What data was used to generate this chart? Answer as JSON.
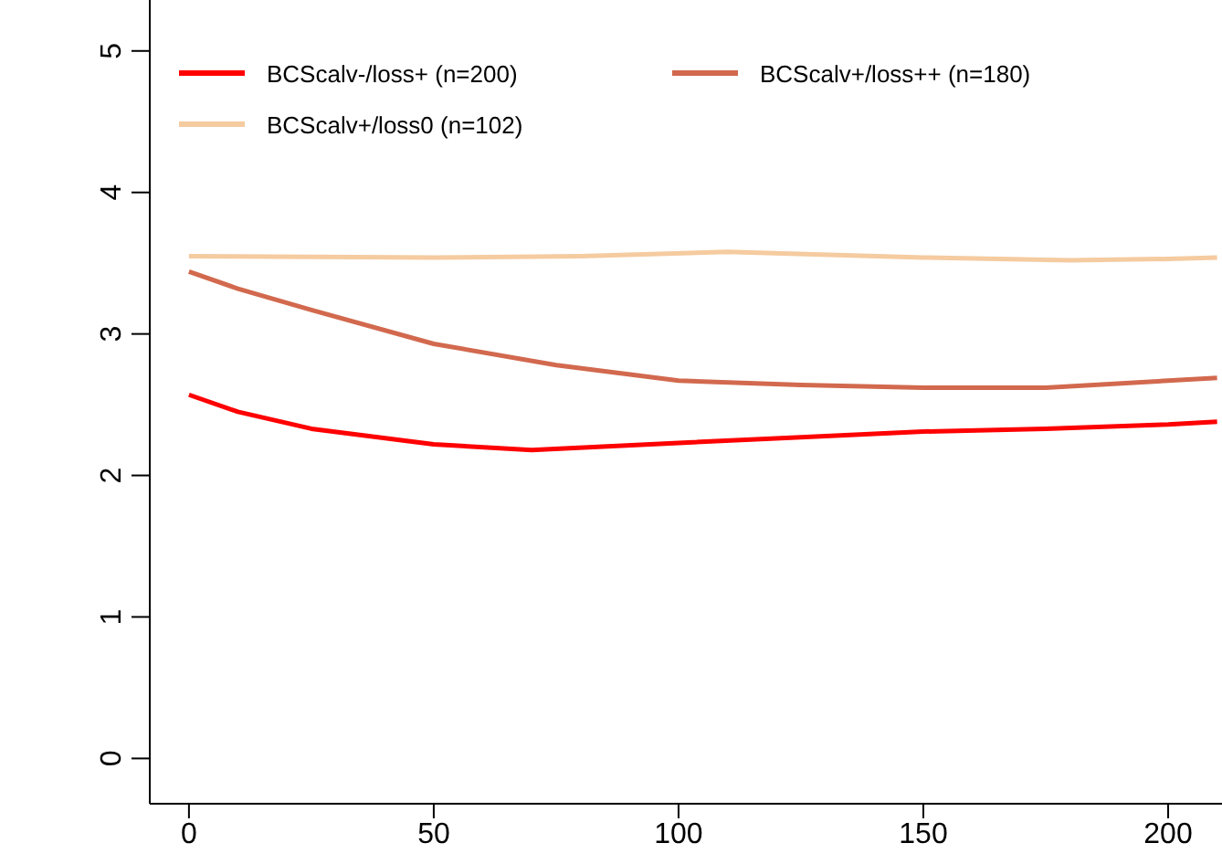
{
  "chart_data": {
    "type": "line",
    "xlim": [
      -8,
      211
    ],
    "xticks": [
      0,
      50,
      100,
      150,
      200
    ],
    "ylim": [
      -0.32,
      5.36
    ],
    "yticks": [
      0,
      1,
      2,
      3,
      4,
      5
    ],
    "grid": false,
    "legend": "top left",
    "marker": "none",
    "line_style": "solid",
    "series": [
      {
        "name": "BCScalv-/loss+ (n=200)",
        "color": "#ff0000",
        "x": [
          0,
          10,
          25,
          50,
          70,
          100,
          125,
          150,
          175,
          200,
          210
        ],
        "values": [
          2.57,
          2.45,
          2.33,
          2.22,
          2.18,
          2.23,
          2.27,
          2.31,
          2.33,
          2.36,
          2.38
        ]
      },
      {
        "name": "BCScalv+/loss++ (n=180)",
        "color": "#d2694e",
        "x": [
          0,
          10,
          25,
          50,
          75,
          100,
          125,
          150,
          175,
          200,
          210
        ],
        "values": [
          3.44,
          3.32,
          3.17,
          2.93,
          2.78,
          2.67,
          2.64,
          2.62,
          2.62,
          2.67,
          2.69
        ]
      },
      {
        "name": "BCScalv+/loss0 (n=102)",
        "color": "#f5cba0",
        "x": [
          0,
          50,
          80,
          110,
          150,
          180,
          200,
          210
        ],
        "values": [
          3.55,
          3.54,
          3.55,
          3.58,
          3.54,
          3.52,
          3.53,
          3.54
        ]
      }
    ]
  }
}
